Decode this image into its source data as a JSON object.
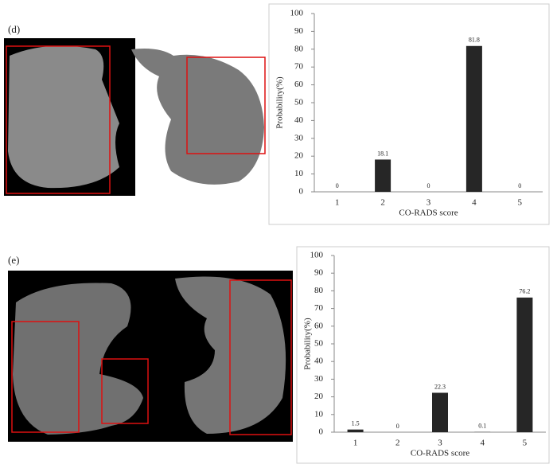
{
  "chart_data": [
    {
      "type": "bar",
      "panel_label": "(d)",
      "x_label": "CO-RADS score",
      "y_label": "Probability(%)",
      "categories": [
        "1",
        "2",
        "3",
        "4",
        "5"
      ],
      "values": [
        0,
        18.1,
        0,
        81.8,
        0
      ],
      "color": "#262626",
      "ylim": [
        0,
        100
      ],
      "yticks": [
        0,
        10,
        20,
        30,
        40,
        50,
        60,
        70,
        80,
        90,
        100
      ],
      "grid": false
    },
    {
      "type": "bar",
      "panel_label": "(e)",
      "x_label": "CO-RADS score",
      "y_label": "Probability(%)",
      "categories": [
        "1",
        "2",
        "3",
        "4",
        "5"
      ],
      "values": [
        1.5,
        0,
        22.3,
        0.1,
        76.2
      ],
      "color": "#262626",
      "ylim": [
        0,
        100
      ],
      "yticks": [
        0,
        10,
        20,
        30,
        40,
        50,
        60,
        70,
        80,
        90,
        100
      ],
      "grid": false
    }
  ]
}
